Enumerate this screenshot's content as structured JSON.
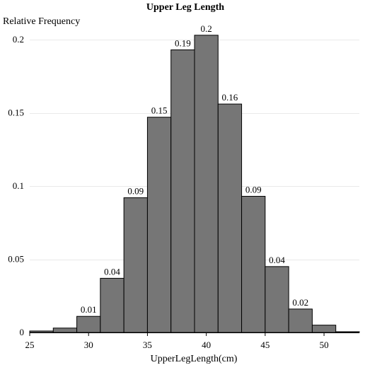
{
  "chart_data": {
    "type": "bar",
    "title": "Upper Leg Length",
    "xlabel": "UpperLegLength(cm)",
    "ylabel": "Relative Frequency",
    "xlim": [
      25,
      53
    ],
    "ylim": [
      0,
      0.2
    ],
    "xticks": [
      25,
      30,
      35,
      40,
      45,
      50
    ],
    "yticks": [
      0,
      0.05,
      0.1,
      0.15,
      0.2
    ],
    "ytick_labels": [
      "0",
      "0.05",
      "0.1",
      "0.15",
      "0.2"
    ],
    "grid": true,
    "bins": [
      {
        "start": 25,
        "end": 27,
        "value": 0.001,
        "label": ""
      },
      {
        "start": 27,
        "end": 29,
        "value": 0.003,
        "label": ""
      },
      {
        "start": 29,
        "end": 31,
        "value": 0.011,
        "label": "0.01"
      },
      {
        "start": 31,
        "end": 33,
        "value": 0.037,
        "label": "0.04"
      },
      {
        "start": 33,
        "end": 35,
        "value": 0.092,
        "label": "0.09"
      },
      {
        "start": 35,
        "end": 37,
        "value": 0.147,
        "label": "0.15"
      },
      {
        "start": 37,
        "end": 39,
        "value": 0.193,
        "label": "0.19"
      },
      {
        "start": 39,
        "end": 41,
        "value": 0.203,
        "label": "0.2"
      },
      {
        "start": 41,
        "end": 43,
        "value": 0.156,
        "label": "0.16"
      },
      {
        "start": 43,
        "end": 45,
        "value": 0.093,
        "label": "0.09"
      },
      {
        "start": 45,
        "end": 47,
        "value": 0.045,
        "label": "0.04"
      },
      {
        "start": 47,
        "end": 49,
        "value": 0.016,
        "label": "0.02"
      },
      {
        "start": 49,
        "end": 51,
        "value": 0.005,
        "label": ""
      },
      {
        "start": 51,
        "end": 53,
        "value": 0.0005,
        "label": ""
      }
    ]
  }
}
